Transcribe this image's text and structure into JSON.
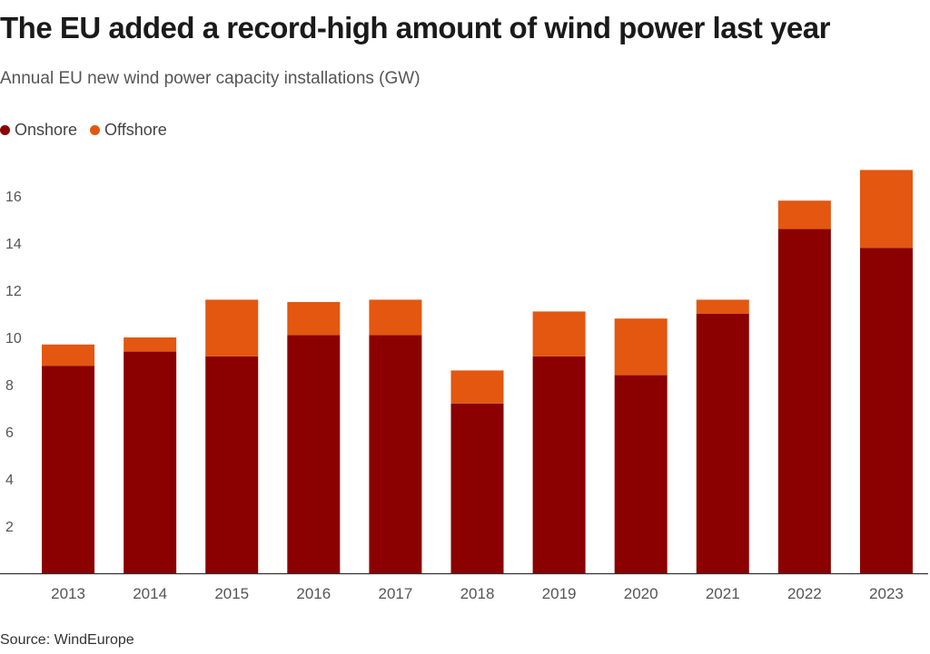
{
  "title": "The EU added a record-high amount of wind power last year",
  "subtitle": "Annual EU new wind power capacity installations (GW)",
  "source": "Source: WindEurope",
  "colors": {
    "onshore": "#8b0000",
    "offshore": "#e35710",
    "axis": "#333333",
    "tick_text": "#555555"
  },
  "chart_data": {
    "type": "bar",
    "stacked": true,
    "categories": [
      "2013",
      "2014",
      "2015",
      "2016",
      "2017",
      "2018",
      "2019",
      "2020",
      "2021",
      "2022",
      "2023"
    ],
    "series": [
      {
        "name": "Onshore",
        "color": "#8b0000",
        "values": [
          8.8,
          9.4,
          9.2,
          10.1,
          10.1,
          7.2,
          9.2,
          8.4,
          11.0,
          14.6,
          13.8
        ]
      },
      {
        "name": "Offshore",
        "color": "#e35710",
        "values": [
          0.9,
          0.6,
          2.4,
          1.4,
          1.5,
          1.4,
          1.9,
          2.4,
          0.6,
          1.2,
          3.3
        ]
      }
    ],
    "ylim": [
      0,
      18
    ],
    "yticks": [
      2,
      4,
      6,
      8,
      10,
      12,
      14,
      16
    ],
    "xlabel": "",
    "ylabel": "",
    "legend_position": "top-left",
    "grid": false
  }
}
